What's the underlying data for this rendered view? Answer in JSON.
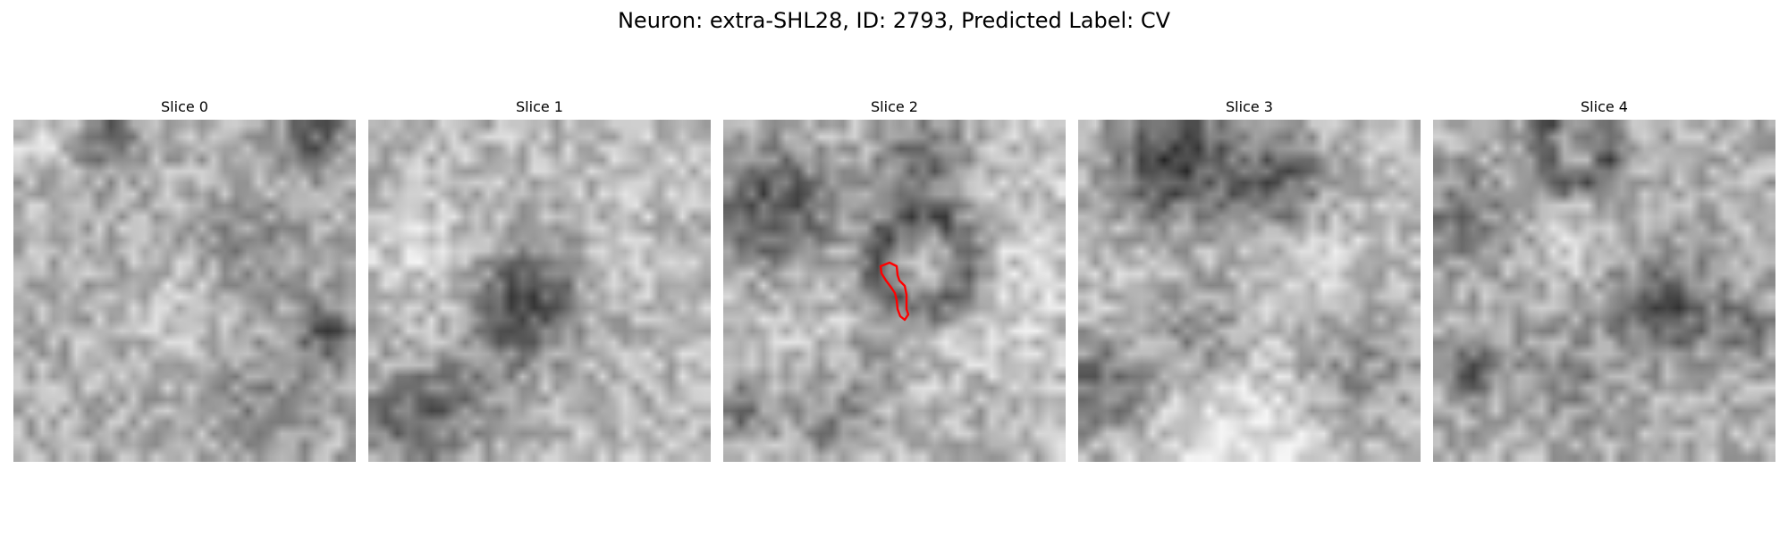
{
  "figure": {
    "title": "Neuron: extra-SHL28, ID: 2793, Predicted Label: CV"
  },
  "panels": [
    {
      "title": "Slice 0"
    },
    {
      "title": "Slice 1"
    },
    {
      "title": "Slice 2"
    },
    {
      "title": "Slice 3"
    },
    {
      "title": "Slice 4"
    }
  ],
  "colors": {
    "contour": "#ff0000",
    "colormap": "gray"
  }
}
